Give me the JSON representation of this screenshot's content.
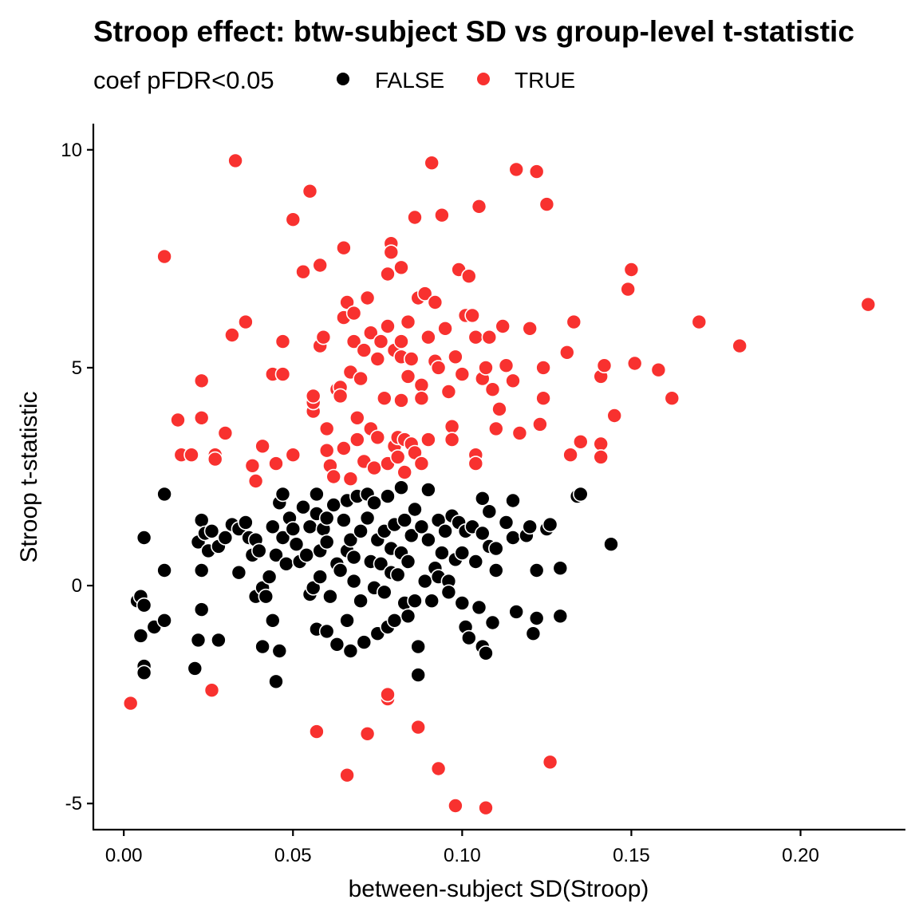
{
  "chart_data": {
    "type": "scatter",
    "title": "Stroop effect: btw-subject SD vs group-level t-statistic",
    "xlabel": "between-subject SD(Stroop)",
    "ylabel": "Stroop t-statistic",
    "xlim": [
      -0.009,
      0.231
    ],
    "ylim": [
      -5.6,
      10.6
    ],
    "x_ticks": [
      0.0,
      0.05,
      0.1,
      0.15,
      0.2
    ],
    "x_tick_labels": [
      "0.00",
      "0.05",
      "0.10",
      "0.15",
      "0.20"
    ],
    "y_ticks": [
      -5,
      0,
      5,
      10
    ],
    "y_tick_labels": [
      "-5",
      "0",
      "5",
      "10"
    ],
    "grid": false,
    "legend": {
      "title": "coef pFDR<0.05",
      "position": "top-left",
      "entries": [
        {
          "label": "FALSE",
          "color": "#000000"
        },
        {
          "label": "TRUE",
          "color": "#F8312F"
        }
      ]
    },
    "series": [
      {
        "name": "FALSE",
        "color": "#000000",
        "points": [
          [
            0.004,
            -0.35
          ],
          [
            0.005,
            -0.25
          ],
          [
            0.006,
            -0.45
          ],
          [
            0.005,
            -1.15
          ],
          [
            0.006,
            -1.85
          ],
          [
            0.006,
            -2.0
          ],
          [
            0.009,
            -0.95
          ],
          [
            0.012,
            -0.8
          ],
          [
            0.006,
            1.1
          ],
          [
            0.012,
            0.35
          ],
          [
            0.012,
            2.1
          ],
          [
            0.021,
            -1.9
          ],
          [
            0.022,
            -1.25
          ],
          [
            0.023,
            -0.55
          ],
          [
            0.023,
            0.35
          ],
          [
            0.022,
            1.0
          ],
          [
            0.023,
            1.5
          ],
          [
            0.024,
            1.2
          ],
          [
            0.025,
            0.8
          ],
          [
            0.026,
            1.25
          ],
          [
            0.028,
            0.9
          ],
          [
            0.028,
            -1.25
          ],
          [
            0.03,
            1.1
          ],
          [
            0.032,
            1.4
          ],
          [
            0.034,
            1.3
          ],
          [
            0.034,
            0.3
          ],
          [
            0.036,
            1.45
          ],
          [
            0.037,
            1.1
          ],
          [
            0.038,
            0.7
          ],
          [
            0.039,
            1.05
          ],
          [
            0.039,
            -0.25
          ],
          [
            0.04,
            0.8
          ],
          [
            0.041,
            -0.05
          ],
          [
            0.041,
            -1.4
          ],
          [
            0.042,
            -0.25
          ],
          [
            0.043,
            0.2
          ],
          [
            0.044,
            -0.8
          ],
          [
            0.044,
            1.35
          ],
          [
            0.045,
            0.7
          ],
          [
            0.045,
            -2.2
          ],
          [
            0.046,
            1.9
          ],
          [
            0.046,
            -1.5
          ],
          [
            0.047,
            2.1
          ],
          [
            0.047,
            1.1
          ],
          [
            0.048,
            0.5
          ],
          [
            0.049,
            1.55
          ],
          [
            0.05,
            1.3
          ],
          [
            0.051,
            0.95
          ],
          [
            0.052,
            0.55
          ],
          [
            0.053,
            1.8
          ],
          [
            0.054,
            0.7
          ],
          [
            0.055,
            1.35
          ],
          [
            0.055,
            -0.2
          ],
          [
            0.056,
            -0.05
          ],
          [
            0.057,
            1.65
          ],
          [
            0.057,
            2.1
          ],
          [
            0.057,
            -1.0
          ],
          [
            0.058,
            0.8
          ],
          [
            0.058,
            0.2
          ],
          [
            0.059,
            1.3
          ],
          [
            0.06,
            1.55
          ],
          [
            0.06,
            1.0
          ],
          [
            0.06,
            -1.05
          ],
          [
            0.061,
            -0.25
          ],
          [
            0.062,
            1.85
          ],
          [
            0.063,
            0.5
          ],
          [
            0.063,
            -1.35
          ],
          [
            0.064,
            0.35
          ],
          [
            0.065,
            1.5
          ],
          [
            0.066,
            1.95
          ],
          [
            0.066,
            0.8
          ],
          [
            0.066,
            -0.8
          ],
          [
            0.067,
            1.05
          ],
          [
            0.067,
            -1.5
          ],
          [
            0.068,
            0.65
          ],
          [
            0.068,
            0.1
          ],
          [
            0.069,
            2.05
          ],
          [
            0.07,
            1.25
          ],
          [
            0.07,
            -0.35
          ],
          [
            0.071,
            -1.3
          ],
          [
            0.072,
            2.1
          ],
          [
            0.072,
            1.55
          ],
          [
            0.073,
            0.55
          ],
          [
            0.074,
            1.9
          ],
          [
            0.074,
            -0.05
          ],
          [
            0.075,
            1.05
          ],
          [
            0.075,
            -1.1
          ],
          [
            0.076,
            0.5
          ],
          [
            0.077,
            1.25
          ],
          [
            0.077,
            -0.15
          ],
          [
            0.078,
            2.05
          ],
          [
            0.078,
            -0.95
          ],
          [
            0.079,
            0.85
          ],
          [
            0.079,
            0.3
          ],
          [
            0.08,
            1.4
          ],
          [
            0.08,
            -0.8
          ],
          [
            0.081,
            0.25
          ],
          [
            0.082,
            2.25
          ],
          [
            0.082,
            0.75
          ],
          [
            0.083,
            1.5
          ],
          [
            0.083,
            -0.4
          ],
          [
            0.084,
            -0.7
          ],
          [
            0.084,
            0.55
          ],
          [
            0.085,
            1.15
          ],
          [
            0.086,
            1.75
          ],
          [
            0.086,
            -0.35
          ],
          [
            0.087,
            -1.4
          ],
          [
            0.087,
            -2.05
          ],
          [
            0.088,
            1.35
          ],
          [
            0.089,
            0.1
          ],
          [
            0.09,
            1.05
          ],
          [
            0.09,
            2.2
          ],
          [
            0.091,
            -0.35
          ],
          [
            0.092,
            0.4
          ],
          [
            0.093,
            1.5
          ],
          [
            0.093,
            0.2
          ],
          [
            0.094,
            0.75
          ],
          [
            0.095,
            1.25
          ],
          [
            0.096,
            0.1
          ],
          [
            0.096,
            -0.15
          ],
          [
            0.097,
            1.6
          ],
          [
            0.098,
            0.6
          ],
          [
            0.099,
            1.45
          ],
          [
            0.1,
            0.75
          ],
          [
            0.1,
            -0.4
          ],
          [
            0.101,
            1.25
          ],
          [
            0.101,
            -0.95
          ],
          [
            0.102,
            -1.2
          ],
          [
            0.103,
            1.35
          ],
          [
            0.104,
            0.55
          ],
          [
            0.105,
            -0.5
          ],
          [
            0.106,
            1.2
          ],
          [
            0.106,
            2.0
          ],
          [
            0.106,
            -1.4
          ],
          [
            0.107,
            -1.55
          ],
          [
            0.108,
            1.7
          ],
          [
            0.108,
            0.9
          ],
          [
            0.109,
            -0.85
          ],
          [
            0.11,
            0.85
          ],
          [
            0.11,
            0.35
          ],
          [
            0.113,
            1.45
          ],
          [
            0.115,
            1.1
          ],
          [
            0.115,
            1.95
          ],
          [
            0.116,
            -0.6
          ],
          [
            0.119,
            1.15
          ],
          [
            0.12,
            1.35
          ],
          [
            0.121,
            -1.1
          ],
          [
            0.122,
            0.35
          ],
          [
            0.122,
            -0.75
          ],
          [
            0.125,
            1.3
          ],
          [
            0.126,
            1.4
          ],
          [
            0.129,
            0.4
          ],
          [
            0.129,
            -0.7
          ],
          [
            0.134,
            2.05
          ],
          [
            0.135,
            2.1
          ],
          [
            0.144,
            0.95
          ]
        ]
      },
      {
        "name": "TRUE",
        "color": "#F8312F",
        "points": [
          [
            0.002,
            -2.7
          ],
          [
            0.012,
            7.55
          ],
          [
            0.016,
            3.8
          ],
          [
            0.017,
            3.0
          ],
          [
            0.02,
            3.0
          ],
          [
            0.023,
            4.7
          ],
          [
            0.023,
            3.85
          ],
          [
            0.026,
            -2.4
          ],
          [
            0.027,
            3.0
          ],
          [
            0.027,
            2.9
          ],
          [
            0.03,
            3.5
          ],
          [
            0.032,
            5.75
          ],
          [
            0.033,
            9.75
          ],
          [
            0.036,
            6.05
          ],
          [
            0.038,
            2.75
          ],
          [
            0.039,
            2.4
          ],
          [
            0.041,
            3.2
          ],
          [
            0.044,
            4.85
          ],
          [
            0.045,
            2.8
          ],
          [
            0.047,
            4.85
          ],
          [
            0.047,
            5.6
          ],
          [
            0.05,
            8.4
          ],
          [
            0.05,
            3.0
          ],
          [
            0.053,
            7.2
          ],
          [
            0.055,
            9.05
          ],
          [
            0.056,
            4.0
          ],
          [
            0.056,
            4.2
          ],
          [
            0.056,
            4.35
          ],
          [
            0.057,
            -3.35
          ],
          [
            0.058,
            7.35
          ],
          [
            0.058,
            5.5
          ],
          [
            0.059,
            5.7
          ],
          [
            0.06,
            3.6
          ],
          [
            0.06,
            3.1
          ],
          [
            0.061,
            2.75
          ],
          [
            0.062,
            2.5
          ],
          [
            0.063,
            4.5
          ],
          [
            0.064,
            4.55
          ],
          [
            0.064,
            4.35
          ],
          [
            0.065,
            7.75
          ],
          [
            0.065,
            3.15
          ],
          [
            0.065,
            6.15
          ],
          [
            0.066,
            6.5
          ],
          [
            0.066,
            -4.35
          ],
          [
            0.067,
            2.45
          ],
          [
            0.067,
            4.9
          ],
          [
            0.068,
            6.25
          ],
          [
            0.068,
            5.6
          ],
          [
            0.069,
            3.85
          ],
          [
            0.069,
            3.35
          ],
          [
            0.07,
            4.75
          ],
          [
            0.071,
            2.85
          ],
          [
            0.071,
            5.4
          ],
          [
            0.072,
            6.6
          ],
          [
            0.072,
            -3.4
          ],
          [
            0.073,
            5.8
          ],
          [
            0.073,
            3.6
          ],
          [
            0.074,
            2.7
          ],
          [
            0.075,
            3.4
          ],
          [
            0.075,
            5.2
          ],
          [
            0.076,
            5.6
          ],
          [
            0.077,
            4.3
          ],
          [
            0.078,
            7.15
          ],
          [
            0.078,
            5.95
          ],
          [
            0.078,
            2.8
          ],
          [
            0.078,
            -2.6
          ],
          [
            0.078,
            -2.5
          ],
          [
            0.079,
            7.85
          ],
          [
            0.079,
            7.65
          ],
          [
            0.08,
            3.2
          ],
          [
            0.08,
            5.4
          ],
          [
            0.081,
            3.4
          ],
          [
            0.081,
            2.95
          ],
          [
            0.082,
            7.3
          ],
          [
            0.082,
            5.6
          ],
          [
            0.082,
            5.25
          ],
          [
            0.082,
            4.25
          ],
          [
            0.083,
            3.35
          ],
          [
            0.083,
            2.6
          ],
          [
            0.084,
            6.05
          ],
          [
            0.084,
            4.8
          ],
          [
            0.085,
            3.25
          ],
          [
            0.085,
            5.2
          ],
          [
            0.086,
            8.45
          ],
          [
            0.086,
            3.05
          ],
          [
            0.087,
            6.6
          ],
          [
            0.087,
            -3.25
          ],
          [
            0.088,
            4.6
          ],
          [
            0.088,
            4.3
          ],
          [
            0.088,
            2.8
          ],
          [
            0.089,
            6.7
          ],
          [
            0.09,
            5.7
          ],
          [
            0.09,
            3.35
          ],
          [
            0.091,
            9.7
          ],
          [
            0.092,
            6.5
          ],
          [
            0.092,
            5.15
          ],
          [
            0.093,
            5.0
          ],
          [
            0.093,
            -4.2
          ],
          [
            0.094,
            8.5
          ],
          [
            0.095,
            5.9
          ],
          [
            0.096,
            4.45
          ],
          [
            0.097,
            3.65
          ],
          [
            0.097,
            3.35
          ],
          [
            0.098,
            5.25
          ],
          [
            0.098,
            -5.05
          ],
          [
            0.099,
            7.25
          ],
          [
            0.1,
            4.85
          ],
          [
            0.101,
            6.2
          ],
          [
            0.102,
            7.1
          ],
          [
            0.103,
            6.2
          ],
          [
            0.104,
            5.7
          ],
          [
            0.104,
            3.0
          ],
          [
            0.104,
            2.8
          ],
          [
            0.105,
            8.7
          ],
          [
            0.106,
            4.75
          ],
          [
            0.107,
            5.0
          ],
          [
            0.107,
            -5.1
          ],
          [
            0.108,
            5.7
          ],
          [
            0.109,
            4.5
          ],
          [
            0.11,
            3.6
          ],
          [
            0.111,
            4.05
          ],
          [
            0.112,
            5.95
          ],
          [
            0.113,
            5.05
          ],
          [
            0.115,
            4.7
          ],
          [
            0.116,
            9.55
          ],
          [
            0.117,
            3.5
          ],
          [
            0.12,
            5.9
          ],
          [
            0.122,
            9.5
          ],
          [
            0.123,
            3.7
          ],
          [
            0.124,
            4.3
          ],
          [
            0.124,
            5.0
          ],
          [
            0.125,
            8.75
          ],
          [
            0.126,
            -4.05
          ],
          [
            0.131,
            5.35
          ],
          [
            0.132,
            3.0
          ],
          [
            0.133,
            6.05
          ],
          [
            0.135,
            3.3
          ],
          [
            0.141,
            4.8
          ],
          [
            0.141,
            3.25
          ],
          [
            0.141,
            2.95
          ],
          [
            0.142,
            5.05
          ],
          [
            0.145,
            3.9
          ],
          [
            0.149,
            6.8
          ],
          [
            0.15,
            7.25
          ],
          [
            0.151,
            5.1
          ],
          [
            0.158,
            4.95
          ],
          [
            0.162,
            4.3
          ],
          [
            0.17,
            6.05
          ],
          [
            0.182,
            5.5
          ],
          [
            0.22,
            6.45
          ]
        ]
      }
    ]
  }
}
